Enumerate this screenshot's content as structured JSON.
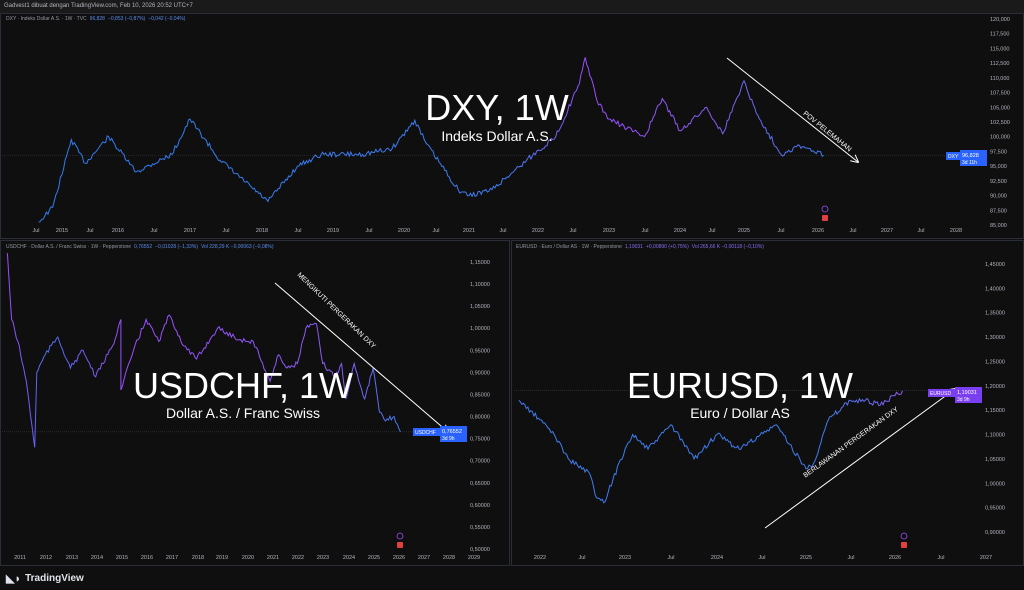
{
  "header": {
    "title": "Gadvest1 dibuat dengan TradingView.com, Feb 10, 2026 20:52 UTC+7"
  },
  "footer": {
    "logo": "TradingView"
  },
  "colors": {
    "blue": "#2f7bf0",
    "purple": "#9b4dff",
    "label_blue": "#2962ff",
    "label_purple": "#7b3ff2"
  },
  "panels": [
    {
      "legend": {
        "name": "DXY · Indeks Dollar A.S. · 1W · TVC",
        "price": "96,828",
        "change": "−0,853 (−0,87%)",
        "extra": "−0,042 (−0,04%)"
      },
      "title": "DXY, 1W",
      "subtitle": "Indeks Dollar A.S.",
      "annotation": "POV PELEMAHAN",
      "price_label": {
        "symbol": "DXY",
        "value": "96,828",
        "countdown": "3d 11h"
      }
    },
    {
      "legend": {
        "name": "USDCHF · Dollar A.S. / Franc Swiss · 1W · Pepperstone",
        "price": "0,76552",
        "change": "−0,01028 (−1,33%)",
        "extra": "Vol 228,29 K  −0,00063 (−0,08%)"
      },
      "title": "USDCHF, 1W",
      "subtitle": "Dollar A.S. / Franc Swiss",
      "annotation": "MENGIKUTI PERGERAKAN DXY",
      "price_label": {
        "symbol": "USDCHF",
        "value": "0,76552",
        "countdown": "3d 9h"
      }
    },
    {
      "legend": {
        "name": "EURUSD · Euro / Dollar AS · 1W · Pepperstone",
        "price": "1,19031",
        "change": "+0,00890 (+0,75%)",
        "extra": "Vol 265,66 K  −0,00118 (−0,10%)"
      },
      "title": "EURUSD, 1W",
      "subtitle": "Euro / Dollar AS",
      "annotation": "BERLAWANAN PERGERAKAN DXY",
      "price_label": {
        "symbol": "EURUSD",
        "value": "1,19031",
        "countdown": "3d 9h"
      }
    }
  ],
  "chart_data": [
    {
      "type": "line",
      "symbol": "DXY",
      "timeframe": "1W",
      "x_ticks": [
        "Jul",
        "2015",
        "Jul",
        "2016",
        "Jul",
        "2017",
        "Jul",
        "2018",
        "Jul",
        "2019",
        "Jul",
        "2020",
        "Jul",
        "2021",
        "Jul",
        "2022",
        "Jul",
        "2023",
        "Jul",
        "2024",
        "Jul",
        "2025",
        "Jul",
        "2026",
        "Jul",
        "2027",
        "Jul",
        "2028"
      ],
      "y_ticks": [
        "85,000",
        "87,500",
        "90,000",
        "92,500",
        "95,000",
        "97,500",
        "100,000",
        "102,500",
        "105,000",
        "107,500",
        "110,000",
        "112,500",
        "115,000",
        "117,500",
        "120,000"
      ],
      "ylim": [
        85,
        120
      ],
      "x": [
        "2014-08",
        "2014-11",
        "2015-03",
        "2015-06",
        "2015-11",
        "2016-04",
        "2016-10",
        "2017-01",
        "2017-06",
        "2018-02",
        "2018-07",
        "2018-11",
        "2019-06",
        "2019-11",
        "2020-03",
        "2020-05",
        "2020-11",
        "2021-01",
        "2021-05",
        "2021-11",
        "2022-04",
        "2022-08",
        "2022-09",
        "2022-11",
        "2023-01",
        "2023-07",
        "2023-10",
        "2024-01",
        "2024-06",
        "2024-09",
        "2025-01",
        "2025-03",
        "2025-07",
        "2025-10",
        "2026-02"
      ],
      "y": [
        85.5,
        88,
        99.5,
        95.5,
        100,
        94,
        97,
        103,
        96,
        89,
        95,
        97,
        97,
        98,
        102.8,
        99,
        91,
        90,
        91,
        96,
        100,
        109,
        113.5,
        106,
        103,
        100,
        106.5,
        101,
        105,
        100.5,
        109.5,
        104,
        97,
        98.5,
        96.83
      ]
    },
    {
      "type": "line",
      "symbol": "USDCHF",
      "timeframe": "1W",
      "x_ticks": [
        "2011",
        "2012",
        "2013",
        "2014",
        "2015",
        "2016",
        "2017",
        "2018",
        "2019",
        "2020",
        "2021",
        "2022",
        "2023",
        "2024",
        "2025",
        "2026",
        "2027",
        "2028",
        "2029"
      ],
      "y_ticks": [
        "0,50000",
        "0,55000",
        "0,60000",
        "0,65000",
        "0,70000",
        "0,75000",
        "0,80000",
        "0,85000",
        "0,90000",
        "0,95000",
        "1,00000",
        "1,05000",
        "1,10000",
        "1,15000"
      ],
      "ylim": [
        0.5,
        1.15
      ],
      "x": [
        "2010-07",
        "2010-09",
        "2010-12",
        "2011-04",
        "2011-08",
        "2011-09",
        "2012-01",
        "2012-07",
        "2013-01",
        "2013-07",
        "2014-01",
        "2014-09",
        "2015-01",
        "2015-01",
        "2015-07",
        "2016-01",
        "2016-07",
        "2016-12",
        "2017-07",
        "2018-01",
        "2018-11",
        "2019-07",
        "2020-01",
        "2020-04",
        "2020-12",
        "2021-04",
        "2021-08",
        "2022-01",
        "2022-05",
        "2022-10",
        "2023-01",
        "2023-07",
        "2023-10",
        "2023-12",
        "2024-04",
        "2024-09",
        "2025-01",
        "2025-04",
        "2025-07",
        "2025-11",
        "2026-02"
      ],
      "y": [
        1.17,
        1.02,
        0.97,
        0.88,
        0.73,
        0.9,
        0.94,
        0.98,
        0.91,
        0.95,
        0.89,
        0.96,
        1.02,
        0.86,
        0.95,
        1.02,
        0.97,
        1.03,
        0.96,
        0.93,
        1.0,
        0.98,
        0.97,
        0.97,
        0.88,
        0.94,
        0.91,
        0.92,
        1.0,
        1.01,
        0.92,
        0.89,
        0.92,
        0.84,
        0.92,
        0.84,
        0.91,
        0.81,
        0.79,
        0.8,
        0.7655
      ]
    },
    {
      "type": "line",
      "symbol": "EURUSD",
      "timeframe": "1W",
      "x_ticks": [
        "2022",
        "Jul",
        "2023",
        "Jul",
        "2024",
        "Jul",
        "2025",
        "Jul",
        "2026",
        "Jul",
        "2027"
      ],
      "y_ticks": [
        "0,90000",
        "0,95000",
        "1,00000",
        "1,05000",
        "1,10000",
        "1,15000",
        "1,20000",
        "1,25000",
        "1,30000",
        "1,35000",
        "1,40000",
        "1,45000"
      ],
      "ylim": [
        0.9,
        1.45
      ],
      "x": [
        "2021-10",
        "2022-01",
        "2022-03",
        "2022-05",
        "2022-08",
        "2022-09",
        "2022-10",
        "2023-01",
        "2023-02",
        "2023-04",
        "2023-07",
        "2023-10",
        "2024-01",
        "2024-04",
        "2024-09",
        "2025-01",
        "2025-02",
        "2025-04",
        "2025-07",
        "2025-09",
        "2025-11",
        "2026-01",
        "2026-02"
      ],
      "y": [
        1.17,
        1.13,
        1.1,
        1.05,
        1.02,
        0.97,
        0.96,
        1.07,
        1.1,
        1.07,
        1.12,
        1.05,
        1.1,
        1.07,
        1.12,
        1.03,
        1.04,
        1.13,
        1.17,
        1.17,
        1.16,
        1.18,
        1.19
      ]
    }
  ]
}
